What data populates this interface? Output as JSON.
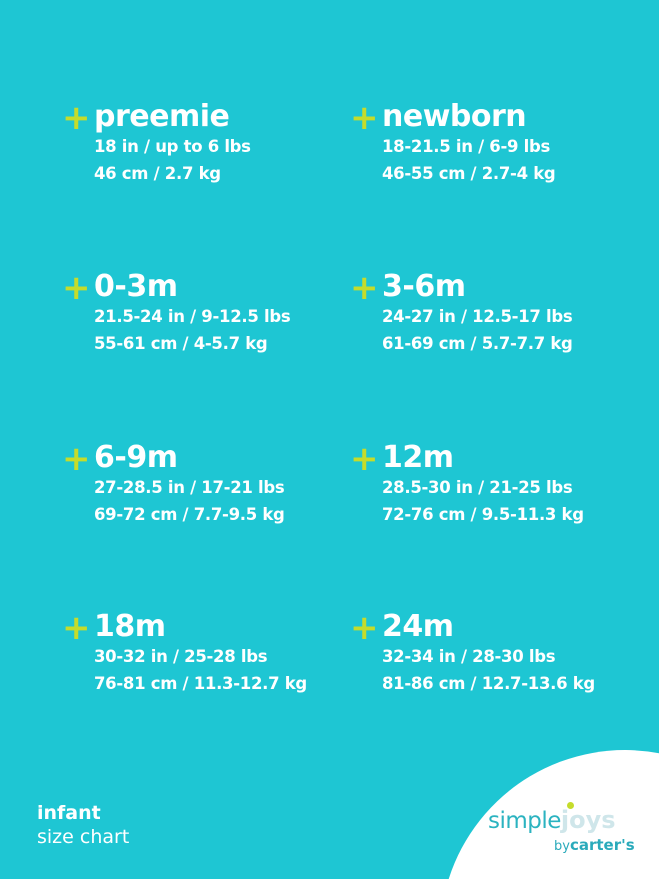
{
  "sizes": [
    {
      "name": "preemie",
      "imperial": "18 in / up to 6 lbs",
      "metric": "46 cm / 2.7 kg"
    },
    {
      "name": "newborn",
      "imperial": "18-21.5 in / 6-9 lbs",
      "metric": "46-55 cm / 2.7-4 kg"
    },
    {
      "name": "0-3m",
      "imperial": "21.5-24 in / 9-12.5 lbs",
      "metric": "55-61 cm / 4-5.7 kg"
    },
    {
      "name": "3-6m",
      "imperial": "24-27 in / 12.5-17 lbs",
      "metric": "61-69 cm / 5.7-7.7 kg"
    },
    {
      "name": "6-9m",
      "imperial": "27-28.5 in / 17-21 lbs",
      "metric": "69-72 cm / 7.7-9.5 kg"
    },
    {
      "name": "12m",
      "imperial": "28.5-30 in / 21-25 lbs",
      "metric": "72-76 cm / 9.5-11.3 kg"
    },
    {
      "name": "18m",
      "imperial": "30-32 in / 25-28 lbs",
      "metric": "76-81 cm / 11.3-12.7 kg"
    },
    {
      "name": "24m",
      "imperial": "32-34 in / 28-30 lbs",
      "metric": "81-86 cm / 12.7-13.6 kg"
    }
  ],
  "plus_symbol": "+",
  "footer": {
    "line1": "infant",
    "line2": "size chart"
  },
  "logo": {
    "simple": "simple",
    "joys": "joys",
    "by": "by",
    "brand": "carter's"
  },
  "colors": {
    "background": "#1ec6d3",
    "accent": "#c5dc2b",
    "text": "#ffffff"
  }
}
